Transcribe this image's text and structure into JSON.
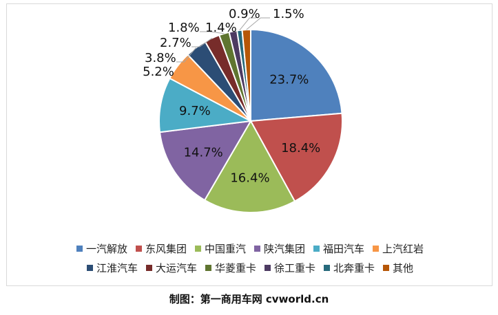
{
  "chart_data": {
    "type": "pie",
    "title": "",
    "categories": [
      "一汽解放",
      "东风集团",
      "中国重汽",
      "陕汽集团",
      "福田汽车",
      "上汽红岩",
      "江淮汽车",
      "大运汽车",
      "华菱重卡",
      "徐工重卡",
      "北奔重卡",
      "其他"
    ],
    "values": [
      23.7,
      18.4,
      16.4,
      14.7,
      9.7,
      5.2,
      3.8,
      2.7,
      1.8,
      1.4,
      0.9,
      1.5
    ],
    "labels": [
      "23.7%",
      "18.4%",
      "16.4%",
      "14.7%",
      "9.7%",
      "5.2%",
      "3.8%",
      "2.7%",
      "1.8%",
      "1.4%",
      "0.9%",
      "1.5%"
    ],
    "colors": [
      "#4f81bd",
      "#c0504d",
      "#9bbb59",
      "#8064a2",
      "#4bacc6",
      "#f79646",
      "#2c4d75",
      "#772c2a",
      "#5f7530",
      "#4d3b62",
      "#276a7c",
      "#b65708"
    ],
    "legend_position": "bottom"
  },
  "caption": "制图：第一商用车网 cvworld.cn"
}
